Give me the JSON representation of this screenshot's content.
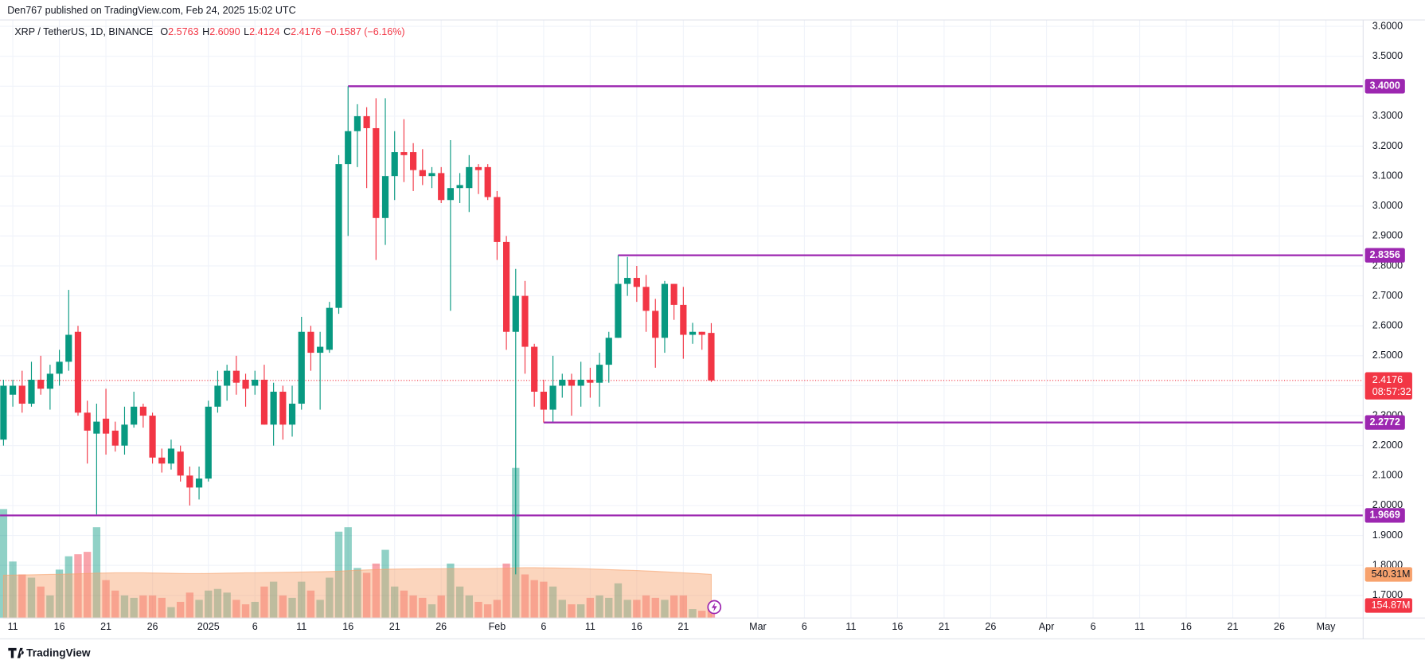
{
  "chart_data": {
    "type": "candlestick",
    "publisher": "Den767 published on TradingView.com, Feb 24, 2025 15:02 UTC",
    "title": "XRP / TetherUS, 1D, BINANCE",
    "ohlc_header": [
      {
        "key": "O",
        "value": "2.5763"
      },
      {
        "key": "H",
        "value": "2.6090"
      },
      {
        "key": "L",
        "value": "2.4124"
      },
      {
        "key": "C",
        "value": "2.4176"
      }
    ],
    "change": "−0.1587 (−6.16%)",
    "footer": "TradingView",
    "up_color": "#089981",
    "down_color": "#f23645",
    "level_color": "#9c27b0",
    "ma_color": "#f7a26d",
    "xlim": [
      -0.37,
      146
    ],
    "ylim": [
      1.6243,
      3.6212
    ],
    "volume_ylim": [
      0,
      7410
    ],
    "grid": true,
    "yticks": [
      {
        "value": 1.7,
        "label": "1.7000"
      },
      {
        "value": 1.8,
        "label": "1.8000"
      },
      {
        "value": 1.9,
        "label": "1.9000"
      },
      {
        "value": 2.0,
        "label": "2.0000"
      },
      {
        "value": 2.1,
        "label": "2.1000"
      },
      {
        "value": 2.2,
        "label": "2.2000"
      },
      {
        "value": 2.3,
        "label": "2.3000"
      },
      {
        "value": 2.4,
        "label": "2.4000"
      },
      {
        "value": 2.5,
        "label": "2.5000"
      },
      {
        "value": 2.6,
        "label": "2.6000"
      },
      {
        "value": 2.7,
        "label": "2.7000"
      },
      {
        "value": 2.8,
        "label": "2.8000"
      },
      {
        "value": 2.9,
        "label": "2.9000"
      },
      {
        "value": 3.0,
        "label": "3.0000"
      },
      {
        "value": 3.1,
        "label": "3.1000"
      },
      {
        "value": 3.2,
        "label": "3.2000"
      },
      {
        "value": 3.3,
        "label": "3.3000"
      },
      {
        "value": 3.4,
        "label": "3.4000"
      },
      {
        "value": 3.5,
        "label": "3.5000"
      },
      {
        "value": 3.6,
        "label": "3.6000"
      }
    ],
    "xticks": [
      {
        "value": 1,
        "label": "11"
      },
      {
        "value": 6,
        "label": "16"
      },
      {
        "value": 11,
        "label": "21"
      },
      {
        "value": 16,
        "label": "26"
      },
      {
        "value": 22,
        "label": "2025"
      },
      {
        "value": 27,
        "label": "6"
      },
      {
        "value": 32,
        "label": "11"
      },
      {
        "value": 37,
        "label": "16"
      },
      {
        "value": 42,
        "label": "21"
      },
      {
        "value": 47,
        "label": "26"
      },
      {
        "value": 53,
        "label": "Feb"
      },
      {
        "value": 58,
        "label": "6"
      },
      {
        "value": 63,
        "label": "11"
      },
      {
        "value": 68,
        "label": "16"
      },
      {
        "value": 73,
        "label": "21"
      },
      {
        "value": 81,
        "label": "Mar"
      },
      {
        "value": 86,
        "label": "6"
      },
      {
        "value": 91,
        "label": "11"
      },
      {
        "value": 96,
        "label": "16"
      },
      {
        "value": 101,
        "label": "21"
      },
      {
        "value": 106,
        "label": "26"
      },
      {
        "value": 112,
        "label": "Apr"
      },
      {
        "value": 117,
        "label": "6"
      },
      {
        "value": 122,
        "label": "11"
      },
      {
        "value": 127,
        "label": "16"
      },
      {
        "value": 132,
        "label": "21"
      },
      {
        "value": 137,
        "label": "26"
      },
      {
        "value": 142,
        "label": "May"
      }
    ],
    "open": [
      2.22,
      2.37,
      2.4,
      2.34,
      2.42,
      2.39,
      2.44,
      2.48,
      2.58,
      2.31,
      2.24,
      2.29,
      2.25,
      2.2,
      2.27,
      2.33,
      2.3,
      2.16,
      2.14,
      2.18,
      2.1,
      2.06,
      2.09,
      2.33,
      2.4,
      2.45,
      2.42,
      2.4,
      2.42,
      2.27,
      2.38,
      2.27,
      2.34,
      2.58,
      2.51,
      2.52,
      2.66,
      3.14,
      3.25,
      3.3,
      3.26,
      2.96,
      3.1,
      3.18,
      3.18,
      3.12,
      3.1,
      3.11,
      3.02,
      3.06,
      3.06,
      3.13,
      3.13,
      3.03,
      2.88,
      2.58,
      2.7,
      2.53,
      2.38,
      2.32,
      2.4,
      2.42,
      2.4,
      2.42,
      2.41,
      2.47,
      2.56,
      2.74,
      2.76,
      2.73,
      2.65,
      2.56,
      2.74,
      2.67,
      2.57,
      2.58,
      2.5763
    ],
    "high": [
      2.42,
      2.42,
      2.45,
      2.48,
      2.5,
      2.47,
      2.52,
      2.72,
      2.6,
      2.35,
      2.34,
      2.39,
      2.28,
      2.33,
      2.38,
      2.34,
      2.31,
      2.19,
      2.22,
      2.2,
      2.13,
      2.13,
      2.35,
      2.45,
      2.47,
      2.5,
      2.44,
      2.45,
      2.47,
      2.41,
      2.4,
      2.4,
      2.63,
      2.6,
      2.58,
      2.68,
      3.17,
      3.4,
      3.34,
      3.33,
      3.36,
      3.36,
      3.25,
      3.29,
      3.21,
      3.19,
      3.13,
      3.13,
      3.22,
      3.11,
      3.17,
      3.14,
      3.14,
      3.05,
      2.9,
      2.79,
      2.75,
      2.54,
      2.42,
      2.5,
      2.44,
      2.44,
      2.48,
      2.46,
      2.51,
      2.58,
      2.8356,
      2.83,
      2.8,
      2.77,
      2.69,
      2.75,
      2.74,
      2.73,
      2.61,
      2.58,
      2.609
    ],
    "low": [
      2.2,
      2.33,
      2.31,
      2.33,
      2.37,
      2.32,
      2.4,
      2.45,
      2.3,
      2.14,
      1.97,
      2.17,
      2.18,
      2.17,
      2.26,
      2.26,
      2.14,
      2.11,
      2.12,
      2.08,
      2.0,
      2.02,
      2.08,
      2.31,
      2.35,
      2.37,
      2.33,
      2.37,
      2.27,
      2.2,
      2.22,
      2.23,
      2.32,
      2.45,
      2.32,
      2.51,
      2.64,
      2.9,
      3.13,
      3.06,
      2.82,
      2.87,
      3.02,
      3.08,
      3.05,
      3.07,
      3.06,
      3.01,
      2.65,
      3.01,
      2.98,
      3.04,
      3.02,
      2.82,
      2.52,
      1.77,
      2.44,
      2.33,
      2.2772,
      2.28,
      2.36,
      2.3,
      2.33,
      2.36,
      2.33,
      2.41,
      2.56,
      2.7,
      2.68,
      2.58,
      2.46,
      2.51,
      2.62,
      2.49,
      2.54,
      2.52,
      2.4124
    ],
    "close": [
      2.4,
      2.4,
      2.34,
      2.42,
      2.39,
      2.44,
      2.48,
      2.57,
      2.31,
      2.25,
      2.28,
      2.24,
      2.2,
      2.27,
      2.33,
      2.3,
      2.16,
      2.14,
      2.19,
      2.1,
      2.06,
      2.09,
      2.33,
      2.4,
      2.45,
      2.41,
      2.39,
      2.42,
      2.27,
      2.38,
      2.27,
      2.34,
      2.58,
      2.51,
      2.53,
      2.66,
      3.14,
      3.25,
      3.3,
      3.26,
      2.96,
      3.1,
      3.18,
      3.17,
      3.12,
      3.1,
      3.11,
      3.02,
      3.06,
      3.07,
      3.13,
      3.12,
      3.03,
      2.88,
      2.58,
      2.7,
      2.53,
      2.38,
      2.32,
      2.4,
      2.42,
      2.4,
      2.42,
      2.41,
      2.47,
      2.56,
      2.74,
      2.76,
      2.73,
      2.65,
      2.56,
      2.74,
      2.67,
      2.57,
      2.58,
      2.57,
      2.4176
    ],
    "volume": [
      1350,
      700,
      540,
      500,
      390,
      280,
      600,
      765,
      790,
      820,
      1125,
      470,
      340,
      280,
      250,
      280,
      280,
      250,
      135,
      200,
      315,
      225,
      340,
      360,
      315,
      225,
      170,
      200,
      390,
      450,
      280,
      250,
      450,
      340,
      225,
      500,
      1070,
      1125,
      620,
      560,
      675,
      845,
      390,
      340,
      280,
      250,
      170,
      280,
      675,
      390,
      280,
      200,
      170,
      225,
      675,
      1860,
      540,
      470,
      450,
      390,
      225,
      170,
      170,
      250,
      280,
      250,
      430,
      225,
      225,
      280,
      250,
      225,
      280,
      280,
      110,
      90,
      154.87
    ],
    "volume_label": "154.87M",
    "volume_ma": [
      530,
      532,
      534,
      536,
      538,
      540,
      542,
      545,
      548,
      552,
      556,
      558,
      560,
      560,
      560,
      560,
      558,
      556,
      554,
      552,
      550,
      550,
      552,
      554,
      556,
      558,
      560,
      560,
      562,
      564,
      566,
      568,
      570,
      572,
      574,
      576,
      580,
      586,
      592,
      596,
      600,
      604,
      606,
      608,
      608,
      610,
      610,
      610,
      612,
      612,
      612,
      612,
      612,
      614,
      616,
      622,
      624,
      624,
      622,
      620,
      618,
      616,
      612,
      608,
      604,
      600,
      596,
      592,
      588,
      584,
      578,
      572,
      566,
      560,
      554,
      548,
      540.31
    ],
    "volume_ma_label": "540.31M",
    "last_price": {
      "value": 2.4176,
      "label": "2.4176",
      "countdown": "08:57:32"
    },
    "levels": [
      {
        "value": 3.4,
        "label": "3.4000",
        "start": 37
      },
      {
        "value": 2.8356,
        "label": "2.8356",
        "start": 66
      },
      {
        "value": 2.2772,
        "label": "2.2772",
        "start": 58
      },
      {
        "value": 1.9669,
        "label": "1.9669"
      }
    ]
  }
}
